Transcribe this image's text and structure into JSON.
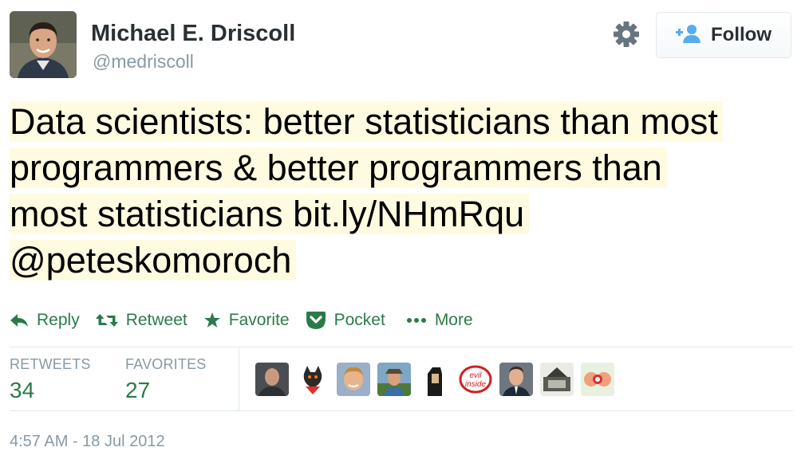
{
  "author": {
    "name": "Michael E. Driscoll",
    "handle": "@medriscoll"
  },
  "follow_button": {
    "label": "Follow"
  },
  "tweet": {
    "lines": [
      "Data scientists: better statisticians than most",
      "programmers & better programmers than",
      "most statisticians bit.ly/NHmRqu",
      "@peteskomoroch"
    ]
  },
  "actions": {
    "reply": "Reply",
    "retweet": "Retweet",
    "favorite": "Favorite",
    "pocket": "Pocket",
    "more": "More"
  },
  "stats": {
    "retweets_label": "RETWEETS",
    "retweets_count": "34",
    "favorites_label": "FAVORITES",
    "favorites_count": "27"
  },
  "timestamp": "4:57 AM - 18 Jul 2012",
  "colors": {
    "action_green": "#2c7a4a",
    "highlight": "#fffbe0",
    "muted": "#8899a6",
    "follow_icon_blue": "#55acee"
  },
  "icons": [
    "gear-icon",
    "follow-person-icon",
    "reply-icon",
    "retweet-icon",
    "favorite-star-icon",
    "pocket-icon",
    "more-dots-icon"
  ]
}
